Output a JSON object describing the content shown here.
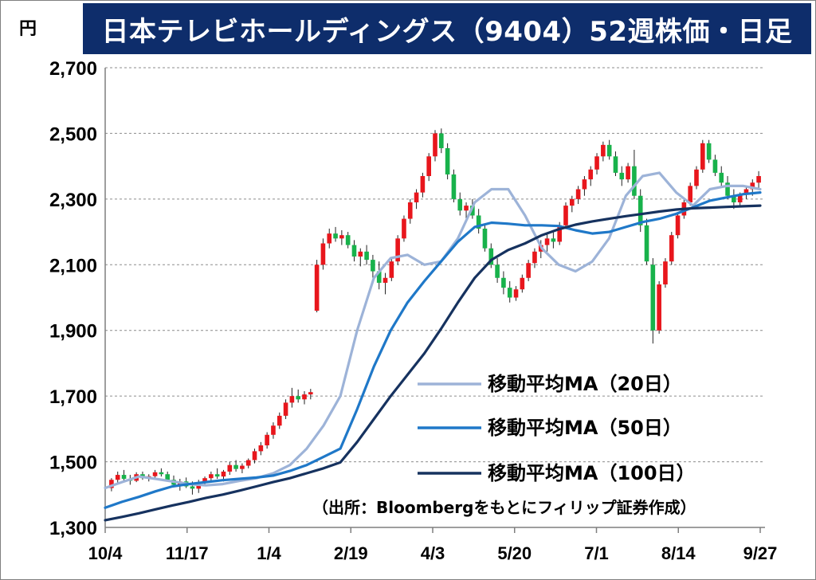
{
  "header": {
    "title": "日本テレビホールディングス（9404）52週株価・日足",
    "unit": "円"
  },
  "source_note": "（出所：Bloombergをもとにフィリップ証券作成）",
  "colors": {
    "title_bg": "#0e2d6b",
    "up_candle": "#e8161c",
    "down_candle": "#18b24b",
    "ma20": "#9db3d8",
    "ma50": "#1f78c8",
    "ma100": "#16325f"
  },
  "chart_data": {
    "type": "candlestick",
    "title": "日本テレビホールディングス（9404）52週株価・日足",
    "ylabel": "円",
    "ylim": [
      1300,
      2700
    ],
    "yticks": [
      1300,
      1500,
      1700,
      1900,
      2100,
      2300,
      2500,
      2700
    ],
    "ytick_labels": [
      "1,300",
      "1,500",
      "1,700",
      "1,900",
      "2,100",
      "2,300",
      "2,500",
      "2,700"
    ],
    "xticks": [
      "10/4",
      "11/17",
      "1/4",
      "2/19",
      "4/3",
      "5/20",
      "7/1",
      "8/14",
      "9/27"
    ],
    "grid": "horizontal dashed",
    "legend_position": "lower-right",
    "series": [
      {
        "name": "移動平均MA（20日）",
        "style": "line",
        "values": [
          1420,
          1438,
          1455,
          1448,
          1440,
          1432,
          1428,
          1432,
          1442,
          1450,
          1465,
          1490,
          1540,
          1610,
          1700,
          1900,
          2060,
          2120,
          2130,
          2100,
          2110,
          2180,
          2290,
          2330,
          2330,
          2250,
          2150,
          2100,
          2080,
          2110,
          2180,
          2310,
          2370,
          2380,
          2320,
          2280,
          2330,
          2340,
          2340,
          2330
        ]
      },
      {
        "name": "移動平均MA（50日）",
        "style": "line",
        "values": [
          1360,
          1378,
          1393,
          1410,
          1425,
          1432,
          1438,
          1444,
          1448,
          1452,
          1458,
          1472,
          1490,
          1515,
          1540,
          1660,
          1790,
          1900,
          1985,
          2050,
          2110,
          2170,
          2215,
          2228,
          2225,
          2220,
          2220,
          2218,
          2205,
          2195,
          2200,
          2215,
          2230,
          2240,
          2255,
          2275,
          2295,
          2305,
          2315,
          2320
        ]
      },
      {
        "name": "移動平均MA（100日）",
        "style": "line",
        "values": [
          1322,
          1332,
          1343,
          1355,
          1367,
          1378,
          1390,
          1400,
          1412,
          1425,
          1438,
          1450,
          1465,
          1480,
          1498,
          1560,
          1630,
          1700,
          1765,
          1830,
          1905,
          1985,
          2060,
          2115,
          2145,
          2165,
          2190,
          2208,
          2222,
          2232,
          2240,
          2248,
          2255,
          2262,
          2268,
          2272,
          2274,
          2276,
          2278,
          2280
        ]
      },
      {
        "name": "daily",
        "style": "candles",
        "ohlc": [
          [
            1420,
            1450,
            1410,
            1445
          ],
          [
            1445,
            1470,
            1430,
            1460
          ],
          [
            1460,
            1475,
            1440,
            1448
          ],
          [
            1448,
            1460,
            1430,
            1442
          ],
          [
            1442,
            1468,
            1438,
            1462
          ],
          [
            1462,
            1470,
            1445,
            1450
          ],
          [
            1450,
            1462,
            1440,
            1456
          ],
          [
            1456,
            1475,
            1445,
            1468
          ],
          [
            1468,
            1480,
            1455,
            1462
          ],
          [
            1462,
            1470,
            1440,
            1445
          ],
          [
            1445,
            1458,
            1425,
            1430
          ],
          [
            1430,
            1448,
            1412,
            1440
          ],
          [
            1440,
            1452,
            1420,
            1425
          ],
          [
            1425,
            1440,
            1400,
            1418
          ],
          [
            1418,
            1445,
            1405,
            1438
          ],
          [
            1438,
            1455,
            1425,
            1450
          ],
          [
            1450,
            1470,
            1440,
            1462
          ],
          [
            1462,
            1480,
            1448,
            1455
          ],
          [
            1455,
            1475,
            1440,
            1470
          ],
          [
            1470,
            1500,
            1460,
            1490
          ],
          [
            1490,
            1505,
            1470,
            1478
          ],
          [
            1478,
            1495,
            1465,
            1488
          ],
          [
            1488,
            1510,
            1480,
            1505
          ],
          [
            1505,
            1540,
            1495,
            1532
          ],
          [
            1532,
            1560,
            1520,
            1550
          ],
          [
            1550,
            1590,
            1540,
            1582
          ],
          [
            1582,
            1620,
            1570,
            1610
          ],
          [
            1610,
            1650,
            1600,
            1640
          ],
          [
            1640,
            1690,
            1630,
            1680
          ],
          [
            1680,
            1725,
            1665,
            1700
          ],
          [
            1700,
            1720,
            1680,
            1690
          ],
          [
            1690,
            1715,
            1675,
            1705
          ],
          [
            1705,
            1722,
            1690,
            1712
          ],
          [
            1960,
            2115,
            1955,
            2100
          ],
          [
            2100,
            2180,
            2085,
            2165
          ],
          [
            2165,
            2210,
            2150,
            2195
          ],
          [
            2195,
            2215,
            2170,
            2180
          ],
          [
            2180,
            2205,
            2160,
            2190
          ],
          [
            2190,
            2200,
            2150,
            2160
          ],
          [
            2160,
            2175,
            2110,
            2125
          ],
          [
            2125,
            2150,
            2095,
            2140
          ],
          [
            2140,
            2160,
            2100,
            2115
          ],
          [
            2115,
            2130,
            2060,
            2080
          ],
          [
            2080,
            2110,
            2025,
            2045
          ],
          [
            2045,
            2075,
            2010,
            2060
          ],
          [
            2060,
            2120,
            2050,
            2110
          ],
          [
            2110,
            2190,
            2100,
            2180
          ],
          [
            2180,
            2250,
            2170,
            2240
          ],
          [
            2240,
            2300,
            2225,
            2290
          ],
          [
            2290,
            2330,
            2270,
            2320
          ],
          [
            2320,
            2380,
            2305,
            2370
          ],
          [
            2370,
            2440,
            2355,
            2430
          ],
          [
            2430,
            2510,
            2415,
            2500
          ],
          [
            2500,
            2515,
            2440,
            2455
          ],
          [
            2455,
            2470,
            2360,
            2375
          ],
          [
            2375,
            2390,
            2290,
            2300
          ],
          [
            2300,
            2320,
            2250,
            2265
          ],
          [
            2265,
            2290,
            2240,
            2280
          ],
          [
            2280,
            2300,
            2240,
            2250
          ],
          [
            2250,
            2270,
            2195,
            2210
          ],
          [
            2210,
            2225,
            2140,
            2150
          ],
          [
            2150,
            2165,
            2090,
            2100
          ],
          [
            2100,
            2120,
            2045,
            2060
          ],
          [
            2060,
            2080,
            2010,
            2030
          ],
          [
            2030,
            2050,
            1985,
            2000
          ],
          [
            2000,
            2035,
            1990,
            2025
          ],
          [
            2025,
            2070,
            2015,
            2060
          ],
          [
            2060,
            2115,
            2050,
            2105
          ],
          [
            2105,
            2150,
            2090,
            2140
          ],
          [
            2140,
            2175,
            2120,
            2160
          ],
          [
            2160,
            2195,
            2140,
            2180
          ],
          [
            2180,
            2200,
            2150,
            2170
          ],
          [
            2170,
            2230,
            2160,
            2220
          ],
          [
            2220,
            2290,
            2210,
            2280
          ],
          [
            2280,
            2310,
            2260,
            2300
          ],
          [
            2300,
            2340,
            2285,
            2330
          ],
          [
            2330,
            2370,
            2310,
            2360
          ],
          [
            2360,
            2400,
            2340,
            2390
          ],
          [
            2390,
            2440,
            2375,
            2430
          ],
          [
            2430,
            2475,
            2415,
            2465
          ],
          [
            2465,
            2480,
            2420,
            2430
          ],
          [
            2430,
            2445,
            2370,
            2380
          ],
          [
            2380,
            2400,
            2340,
            2360
          ],
          [
            2360,
            2410,
            2350,
            2400
          ],
          [
            2400,
            2450,
            2300,
            2310
          ],
          [
            2310,
            2330,
            2200,
            2220
          ],
          [
            2220,
            2240,
            2100,
            2110
          ],
          [
            2100,
            2120,
            1860,
            1900
          ],
          [
            1900,
            2050,
            1890,
            2040
          ],
          [
            2040,
            2120,
            2030,
            2110
          ],
          [
            2110,
            2200,
            2100,
            2190
          ],
          [
            2190,
            2260,
            2180,
            2250
          ],
          [
            2250,
            2300,
            2240,
            2290
          ],
          [
            2290,
            2350,
            2280,
            2340
          ],
          [
            2340,
            2400,
            2330,
            2390
          ],
          [
            2390,
            2480,
            2380,
            2470
          ],
          [
            2470,
            2480,
            2410,
            2420
          ],
          [
            2420,
            2435,
            2370,
            2380
          ],
          [
            2380,
            2400,
            2340,
            2350
          ],
          [
            2350,
            2370,
            2300,
            2310
          ],
          [
            2310,
            2330,
            2270,
            2290
          ],
          [
            2290,
            2320,
            2280,
            2315
          ],
          [
            2315,
            2340,
            2300,
            2330
          ],
          [
            2330,
            2360,
            2310,
            2350
          ],
          [
            2350,
            2385,
            2330,
            2370
          ]
        ]
      }
    ]
  },
  "legend": [
    {
      "label": "移動平均MA（20日）",
      "color": "#9db3d8"
    },
    {
      "label": "移動平均MA（50日）",
      "color": "#1f78c8"
    },
    {
      "label": "移動平均MA（100日）",
      "color": "#16325f"
    }
  ]
}
